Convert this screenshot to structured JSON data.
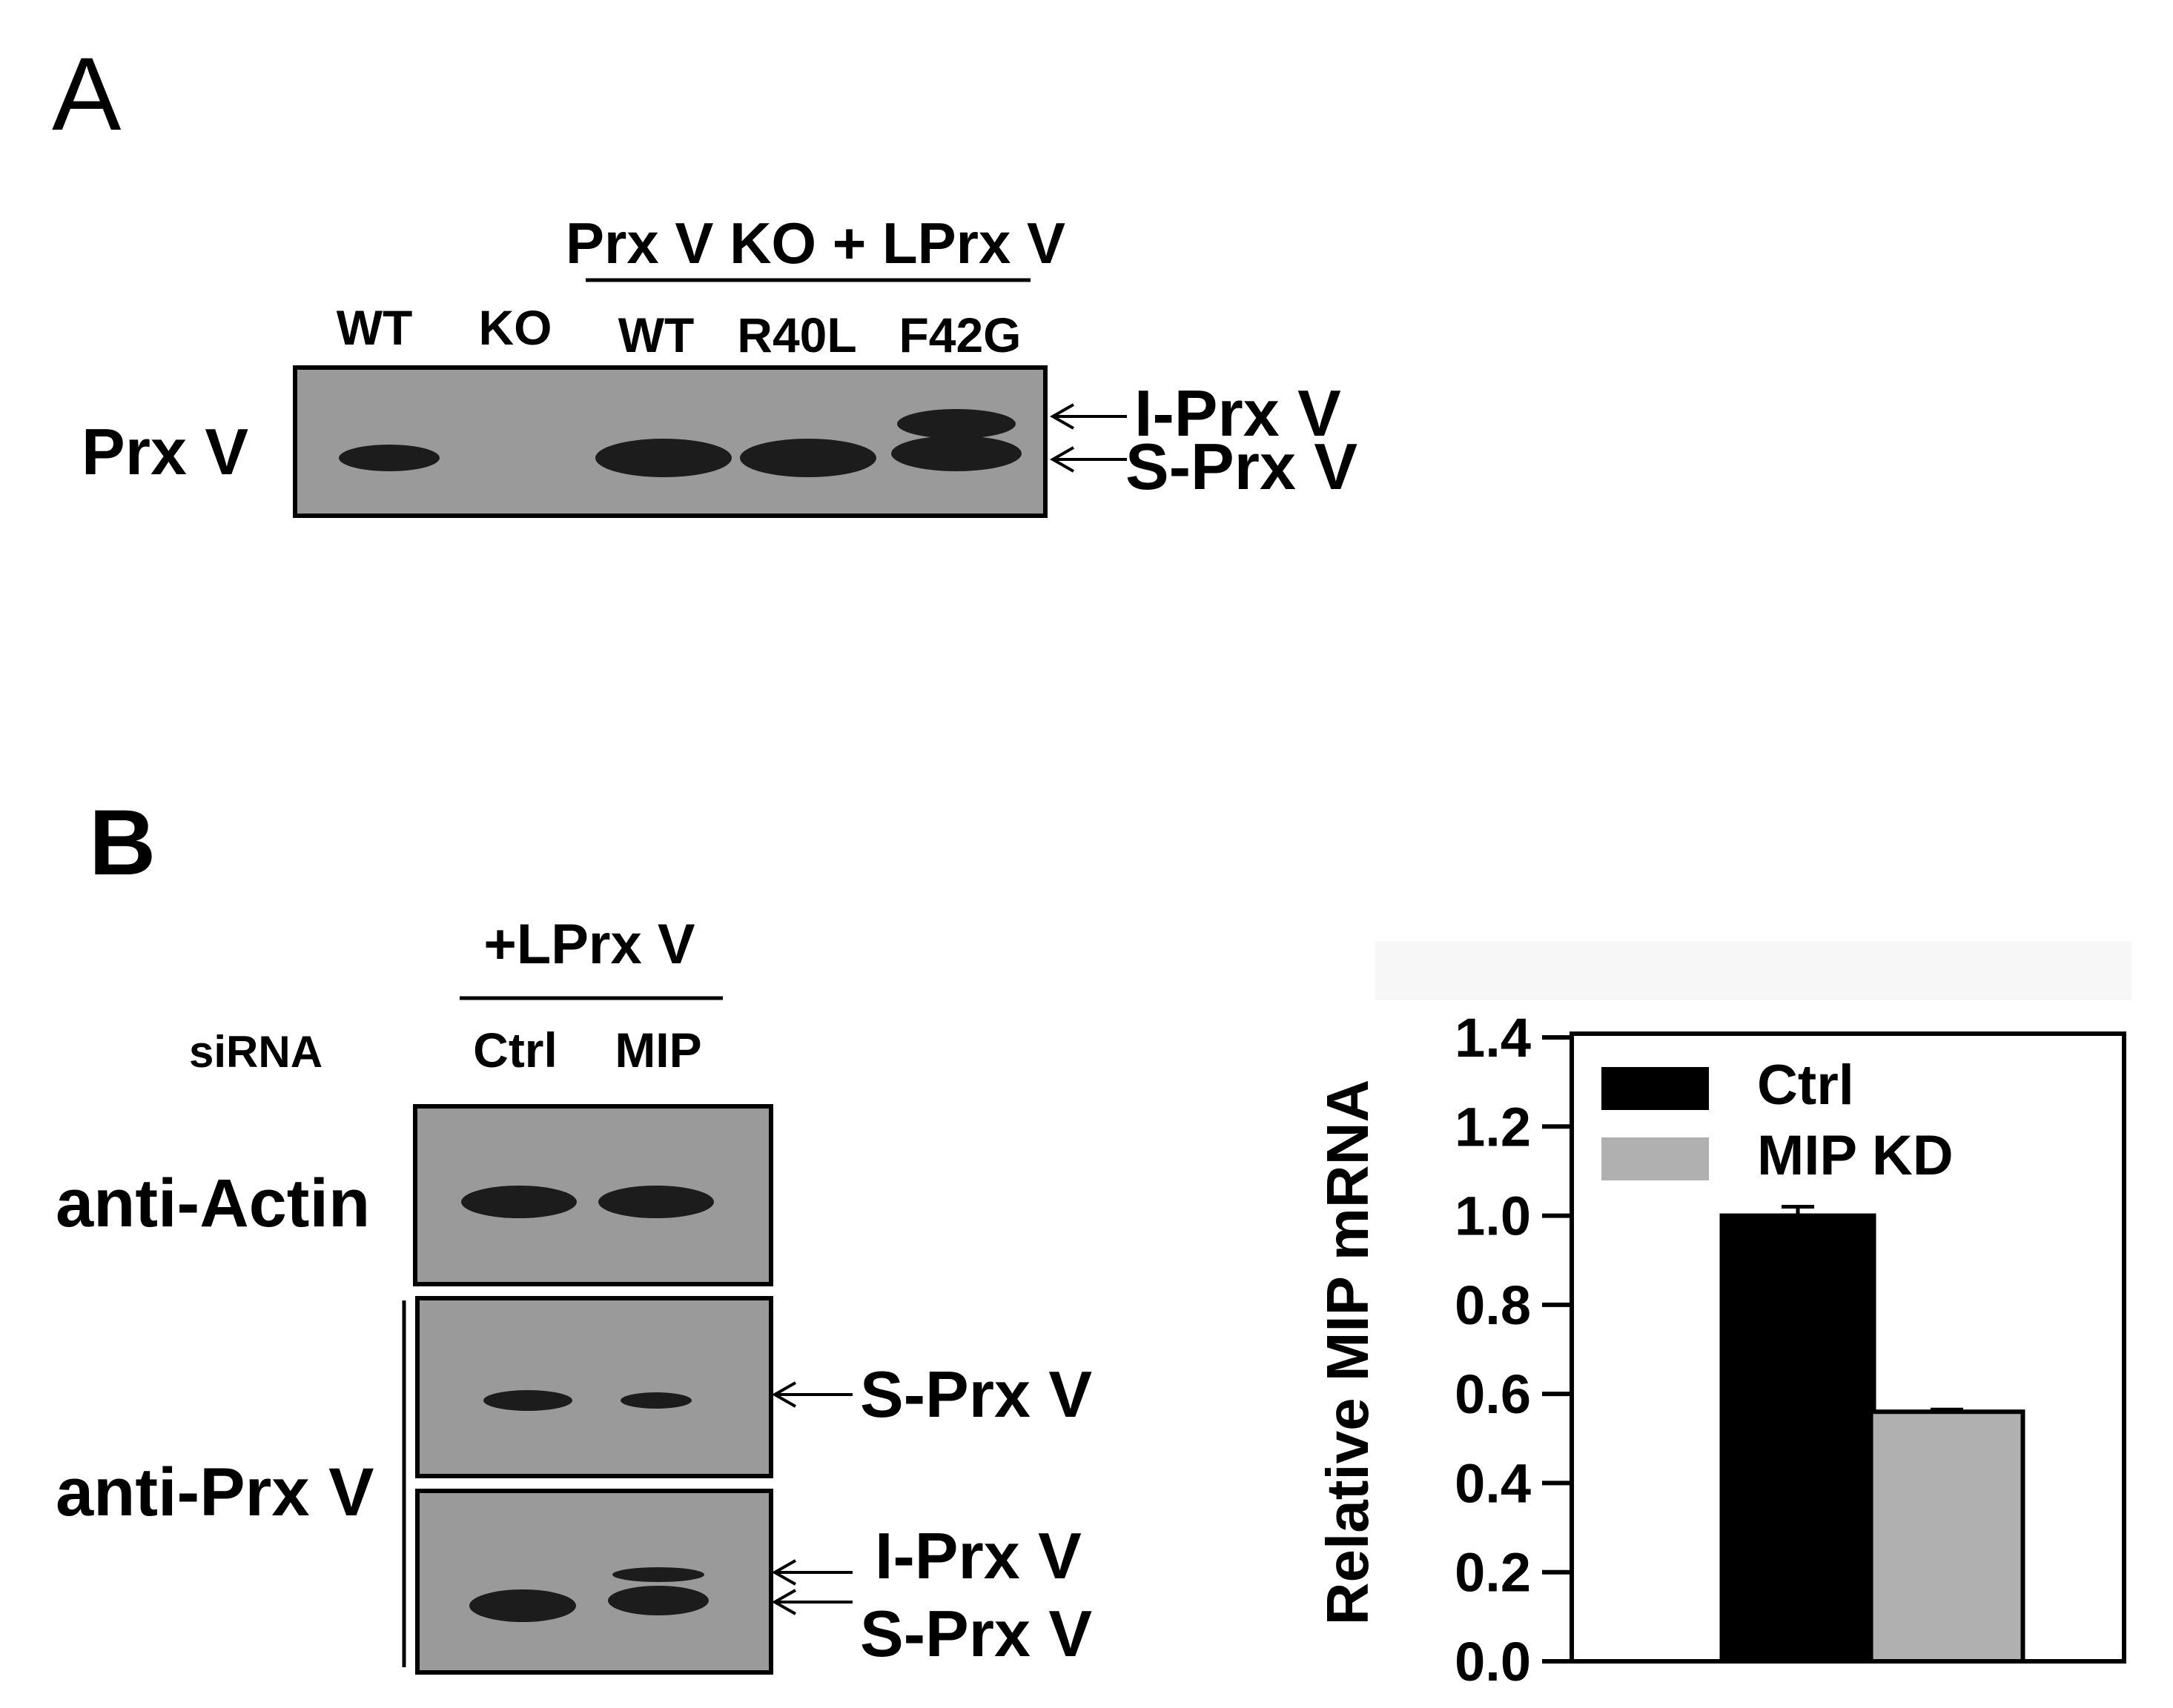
{
  "panel_a": {
    "letter": "A",
    "group_header": "Prx V KO + LPrx V",
    "lanes": [
      "WT",
      "KO",
      "WT",
      "R40L",
      "F42G"
    ],
    "row_label": "Prx V",
    "arrow_labels": [
      "I-Prx V",
      "S-Prx V"
    ]
  },
  "panel_b": {
    "letter": "B",
    "group_header": "+LPrx V",
    "sirna_label": "siRNA",
    "lanes": [
      "Ctrl",
      "MIP"
    ],
    "row_labels": [
      "anti-Actin",
      "anti-Prx V"
    ],
    "middle_arrow_label": "S-Prx V",
    "bottom_arrow_labels": [
      "I-Prx V",
      "S-Prx V"
    ]
  },
  "chart_data": {
    "type": "bar",
    "categories": [
      "Ctrl",
      "MIP KD"
    ],
    "series": [
      {
        "name": "Ctrl",
        "values": [
          1.0,
          null
        ],
        "error": [
          0.02,
          null
        ],
        "color": "#000000"
      },
      {
        "name": "MIP KD",
        "values": [
          null,
          0.56
        ],
        "error": [
          null,
          0.005
        ],
        "color": "#b0b0b0"
      }
    ],
    "ylabel": "Relative MIP mRNA",
    "ylim": [
      0.0,
      1.4
    ],
    "yticks": [
      "0.0",
      "0.2",
      "0.4",
      "0.6",
      "0.8",
      "1.0",
      "1.2",
      "1.4"
    ],
    "legend_position": "top-left",
    "grid": false
  }
}
